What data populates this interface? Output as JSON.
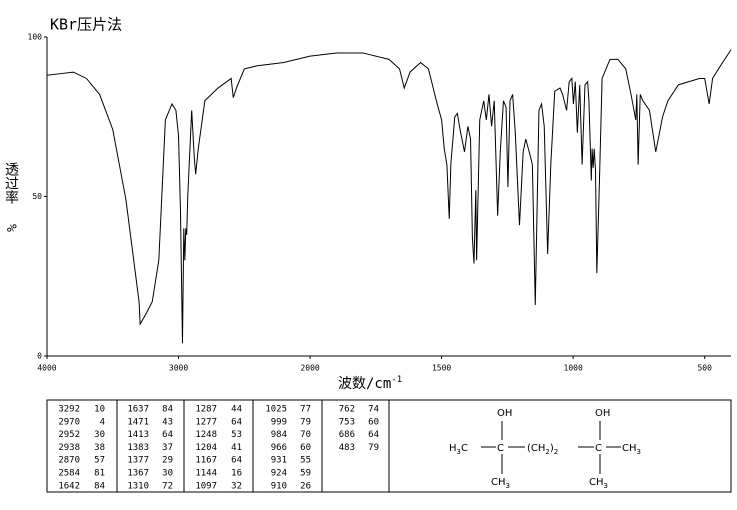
{
  "chart_data": {
    "type": "line",
    "title": "KBr压片法",
    "x_label": "波数/cm",
    "x_label_sup": "-1",
    "y_label": "透过率",
    "y_label_unit": "%",
    "color": "#000000",
    "xlim": [
      4000,
      400
    ],
    "xticks": [
      4000,
      3000,
      2000,
      1500,
      1000,
      500
    ],
    "ylim": [
      0,
      100
    ],
    "yticks": [
      0,
      50,
      100
    ],
    "x": [
      4000,
      3900,
      3800,
      3700,
      3600,
      3500,
      3400,
      3350,
      3300,
      3292,
      3250,
      3200,
      3150,
      3100,
      3050,
      3020,
      3000,
      2985,
      2970,
      2960,
      2952,
      2945,
      2938,
      2930,
      2900,
      2880,
      2870,
      2850,
      2800,
      2700,
      2600,
      2584,
      2560,
      2500,
      2400,
      2200,
      2000,
      1900,
      1800,
      1700,
      1660,
      1642,
      1620,
      1580,
      1550,
      1520,
      1500,
      1490,
      1480,
      1471,
      1465,
      1450,
      1440,
      1430,
      1413,
      1400,
      1390,
      1383,
      1377,
      1370,
      1367,
      1355,
      1340,
      1330,
      1320,
      1310,
      1300,
      1287,
      1277,
      1265,
      1255,
      1248,
      1240,
      1230,
      1220,
      1204,
      1190,
      1180,
      1167,
      1155,
      1144,
      1130,
      1120,
      1110,
      1097,
      1085,
      1070,
      1050,
      1040,
      1025,
      1015,
      1005,
      999,
      992,
      984,
      975,
      966,
      955,
      945,
      940,
      931,
      928,
      924,
      920,
      915,
      910,
      900,
      890,
      860,
      830,
      800,
      780,
      762,
      758,
      753,
      745,
      735,
      710,
      686,
      660,
      640,
      600,
      560,
      520,
      500,
      483,
      470,
      440,
      400
    ],
    "values": [
      88,
      88.5,
      89,
      87,
      82,
      71,
      49,
      33,
      17,
      10,
      13,
      17,
      30,
      74,
      79,
      77,
      69,
      45,
      4,
      40,
      30,
      40,
      38,
      50,
      77,
      62,
      57,
      65,
      80,
      84,
      87,
      81,
      84,
      90,
      91,
      92,
      94,
      95,
      95,
      93,
      90,
      84,
      89,
      92,
      90,
      80,
      74,
      65,
      60,
      43,
      60,
      75,
      76,
      71,
      64,
      72,
      68,
      37,
      29,
      52,
      30,
      74,
      80,
      74,
      82,
      72,
      80,
      44,
      64,
      80,
      78,
      53,
      80,
      82,
      70,
      41,
      64,
      68,
      64,
      60,
      16,
      77,
      79,
      72,
      32,
      60,
      83,
      84,
      82,
      77,
      86,
      87,
      79,
      86,
      70,
      85,
      60,
      85,
      86,
      80,
      55,
      65,
      59,
      65,
      58,
      26,
      55,
      87,
      93,
      93,
      90,
      82,
      74,
      82,
      60,
      82,
      80,
      77,
      64,
      75,
      80,
      85,
      86,
      87,
      87,
      79,
      87,
      91,
      96
    ]
  },
  "peak_table": {
    "groups": [
      [
        [
          "3292",
          "10"
        ],
        [
          "2970",
          "4"
        ],
        [
          "2952",
          "30"
        ],
        [
          "2938",
          "38"
        ],
        [
          "2870",
          "57"
        ],
        [
          "2584",
          "81"
        ],
        [
          "1642",
          "84"
        ]
      ],
      [
        [
          "1637",
          "84"
        ],
        [
          "1471",
          "43"
        ],
        [
          "1413",
          "64"
        ],
        [
          "1383",
          "37"
        ],
        [
          "1377",
          "29"
        ],
        [
          "1367",
          "30"
        ],
        [
          "1310",
          "72"
        ]
      ],
      [
        [
          "1287",
          "44"
        ],
        [
          "1277",
          "64"
        ],
        [
          "1248",
          "53"
        ],
        [
          "1204",
          "41"
        ],
        [
          "1167",
          "64"
        ],
        [
          "1144",
          "16"
        ],
        [
          "1097",
          "32"
        ]
      ],
      [
        [
          "1025",
          "77"
        ],
        [
          "999",
          "79"
        ],
        [
          "984",
          "70"
        ],
        [
          "966",
          "60"
        ],
        [
          "931",
          "55"
        ],
        [
          "924",
          "59"
        ],
        [
          "910",
          "26"
        ]
      ],
      [
        [
          "762",
          "74"
        ],
        [
          "753",
          "60"
        ],
        [
          "686",
          "64"
        ],
        [
          "483",
          "79"
        ]
      ]
    ]
  },
  "structure": {
    "labels": [
      [
        "OH"
      ],
      [
        "H",
        "3",
        "C"
      ],
      [
        "C"
      ],
      [
        "(CH",
        "2",
        ")",
        "2"
      ],
      [
        "C"
      ],
      [
        "CH",
        "3"
      ],
      [
        "OH"
      ],
      [
        "CH",
        "3"
      ],
      [
        "CH",
        "3"
      ]
    ]
  }
}
